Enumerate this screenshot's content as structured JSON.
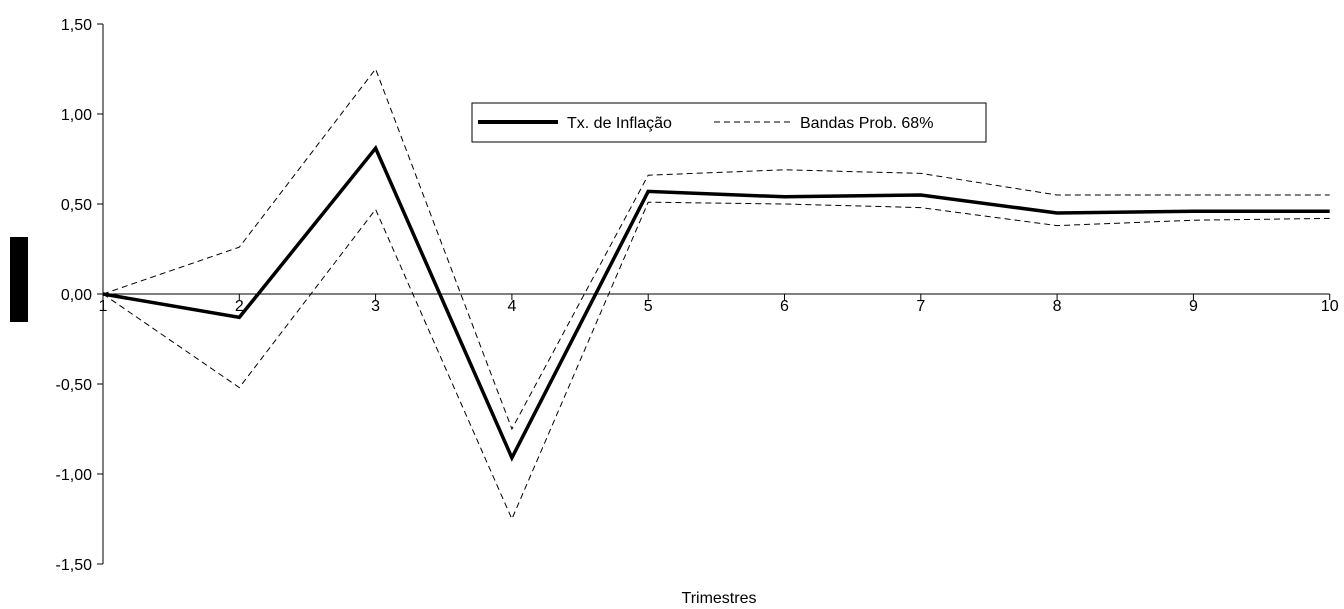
{
  "chart_data": {
    "type": "line",
    "xlabel": "Trimestres",
    "ylabel": "",
    "categories": [
      "1",
      "2",
      "3",
      "4",
      "5",
      "6",
      "7",
      "8",
      "9",
      "10"
    ],
    "ylim": [
      -1.5,
      1.5
    ],
    "yticks": [
      1.5,
      1.0,
      0.5,
      0.0,
      -0.5,
      -1.0,
      -1.5
    ],
    "ytick_labels": [
      "1,50",
      "1,00",
      "0,50",
      "0,00",
      "-0,50",
      "-1,00",
      "-1,50"
    ],
    "grid": false,
    "legend_position": "top-center",
    "series": [
      {
        "name": "Tx. de Inflação",
        "style": "solid",
        "color": "#000000",
        "values": [
          0.0,
          -0.13,
          0.81,
          -0.91,
          0.57,
          0.54,
          0.55,
          0.45,
          0.46,
          0.46
        ]
      },
      {
        "name": "Bandas Prob. 68%",
        "style": "dashed",
        "color": "#000000",
        "values": [
          0.0,
          0.26,
          1.25,
          -0.75,
          0.66,
          0.69,
          0.67,
          0.55,
          0.55,
          0.55
        ]
      },
      {
        "name": "",
        "style": "dashed",
        "color": "#000000",
        "values": [
          0.0,
          -0.52,
          0.47,
          -1.25,
          0.51,
          0.5,
          0.48,
          0.38,
          0.41,
          0.42
        ]
      }
    ]
  }
}
